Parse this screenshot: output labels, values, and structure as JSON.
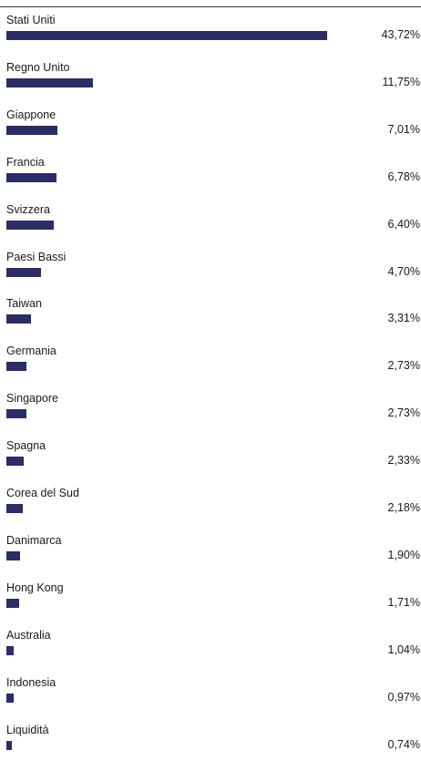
{
  "chart_data": {
    "type": "bar",
    "orientation": "horizontal",
    "categories": [
      "Stati Uniti",
      "Regno Unito",
      "Giappone",
      "Francia",
      "Svizzera",
      "Paesi Bassi",
      "Taiwan",
      "Germania",
      "Singapore",
      "Spagna",
      "Corea del Sud",
      "Danimarca",
      "Hong Kong",
      "Australia",
      "Indonesia",
      "Liquidità"
    ],
    "values": [
      43.72,
      11.75,
      7.01,
      6.78,
      6.4,
      4.7,
      3.31,
      2.73,
      2.73,
      2.33,
      2.18,
      1.9,
      1.71,
      1.04,
      0.97,
      0.74
    ],
    "value_labels": [
      "43,72%",
      "11,75%",
      "7,01%",
      "6,78%",
      "6,40%",
      "4,70%",
      "3,31%",
      "2,73%",
      "2,73%",
      "2,33%",
      "2,18%",
      "1,90%",
      "1,71%",
      "1,04%",
      "0,97%",
      "0,74%"
    ],
    "bar_color": "#2b2d63",
    "grid": false
  }
}
